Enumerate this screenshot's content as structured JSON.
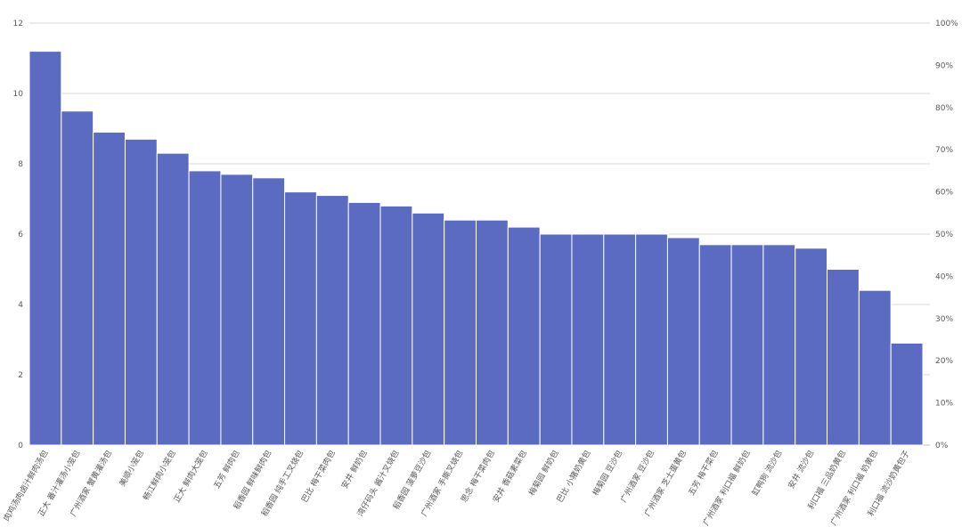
{
  "chart_data": {
    "type": "bar",
    "categories": [
      "肉鸡汤肉卤汁鲜肉汤包",
      "正大 番汁灌汤小笼包",
      "广州酒家 蟹黄灌汤包",
      "美顺小笼包",
      "畅江鲜肉小笼包",
      "正大 鲜肉大笼包",
      "五芳 鲜肉包",
      "稻香园 鲜味鲜肉包",
      "稻香园 纯手工叉烧包",
      "巴比 梅干菜肉包",
      "安井 鲜奶包",
      "湾仔码头 酱汁叉烧包",
      "稻香园 菠萝豆沙包",
      "广州酒家 手撕叉烧包",
      "思念 梅干菜肉包",
      "安井 香菇素菜包",
      "梅菊园 鲜奶包",
      "巴比 小猪奶黄包",
      "梅菊园 豆沙包",
      "广州酒家 豆沙包",
      "广州酒家 芝士蛋黄包",
      "五芳 梅干菜包",
      "广州酒家 利口福 鲜奶包",
      "缸鸭狗 流沙包",
      "安井 流沙包",
      "利口福 三品奶黄包",
      "广州酒家 利口福 奶黄包",
      "利口福 流沙奶黄包子"
    ],
    "values": [
      11.2,
      9.5,
      8.9,
      8.7,
      8.3,
      7.8,
      7.7,
      7.6,
      7.2,
      7.1,
      6.9,
      6.8,
      6.6,
      6.4,
      6.4,
      6.2,
      6.0,
      6.0,
      6.0,
      6.0,
      5.9,
      5.7,
      5.7,
      5.7,
      5.6,
      5.0,
      4.4,
      2.9
    ],
    "ylim": [
      0,
      12
    ],
    "yticks": [
      "0",
      "2",
      "4",
      "6",
      "8",
      "10",
      "12"
    ],
    "y2lim": [
      0,
      100
    ],
    "y2ticks": [
      "0%",
      "10%",
      "20%",
      "30%",
      "40%",
      "50%",
      "60%",
      "70%",
      "80%",
      "90%",
      "100%"
    ],
    "grid": true,
    "colors": {
      "bar": "#5b6bc2"
    },
    "title": "",
    "xlabel": "",
    "ylabel": ""
  }
}
